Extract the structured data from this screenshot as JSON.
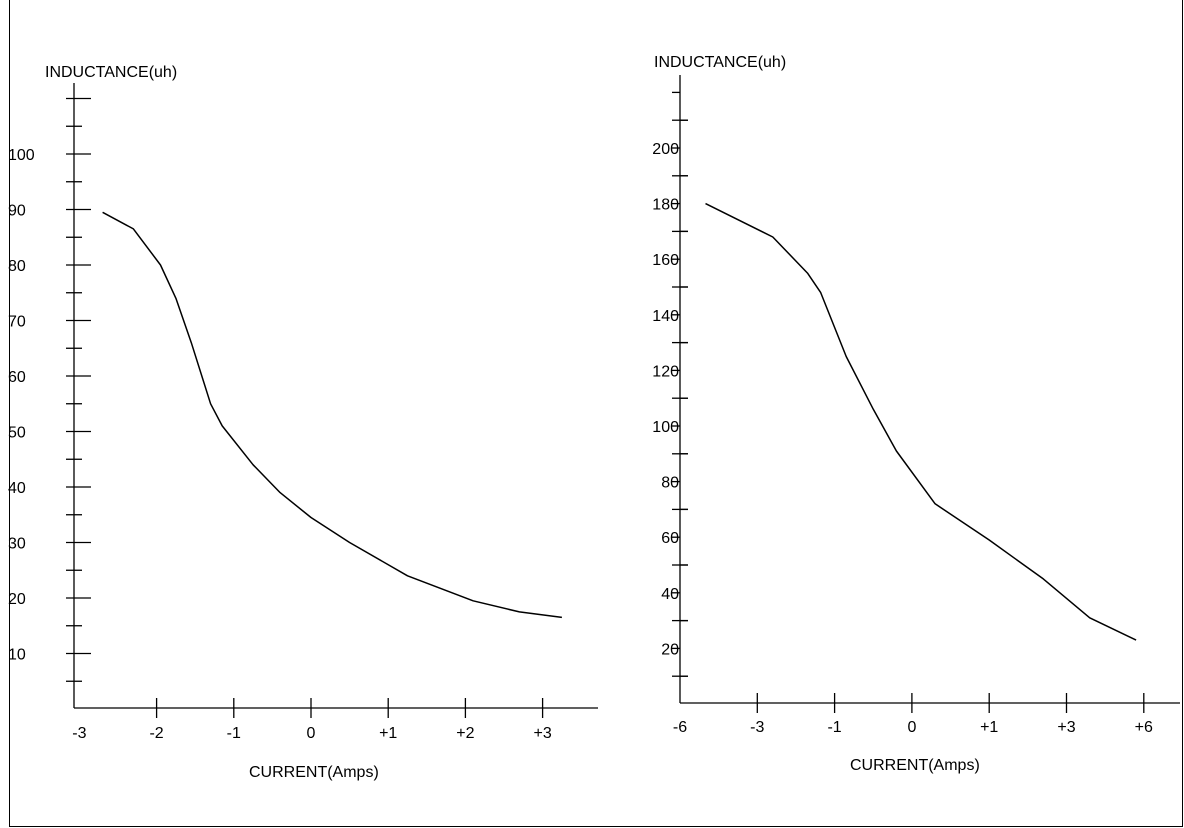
{
  "chart_data": [
    {
      "type": "line",
      "ylabel": "INDUCTANCE(uh)",
      "xlabel": "CURRENT(Amps)",
      "x_ticks": [
        "-3",
        "-2",
        "-1",
        "0",
        "+1",
        "+2",
        "+3"
      ],
      "y_ticks": [
        "10",
        "20",
        "30",
        "40",
        "50",
        "60",
        "70",
        "80",
        "90",
        "100"
      ],
      "xlim": [
        -3,
        3.5
      ],
      "ylim": [
        0,
        115
      ],
      "series": [
        {
          "x": [
            -2.7,
            -2.3,
            -1.95,
            -1.75,
            -1.55,
            -1.3,
            -1.15,
            -0.75,
            -0.4,
            0,
            0.5,
            1.25,
            2.1,
            2.7,
            3.25
          ],
          "y": [
            89.5,
            86.5,
            80,
            74,
            66,
            55,
            51,
            44,
            39,
            34.5,
            30,
            24,
            19.5,
            17.5,
            16.5
          ]
        }
      ]
    },
    {
      "type": "line",
      "ylabel": "INDUCTANCE(uh)",
      "xlabel": "CURRENT(Amps)",
      "x_ticks": [
        "-6",
        "-3",
        "-1",
        "0",
        "+1",
        "+3",
        "+6"
      ],
      "y_ticks": [
        "20",
        "40",
        "60",
        "80",
        "100",
        "120",
        "140",
        "160",
        "180",
        "200"
      ],
      "y_axis_top": 225,
      "series": [
        {
          "x_pos": [
            0.33,
            1.2,
            1.65,
            1.82,
            2.15,
            2.5,
            2.8,
            3.3,
            4.0,
            4.7,
            5.3,
            5.9
          ],
          "y": [
            180,
            168,
            155,
            148,
            125,
            106,
            91,
            72,
            59,
            45,
            31,
            23
          ]
        }
      ]
    }
  ]
}
